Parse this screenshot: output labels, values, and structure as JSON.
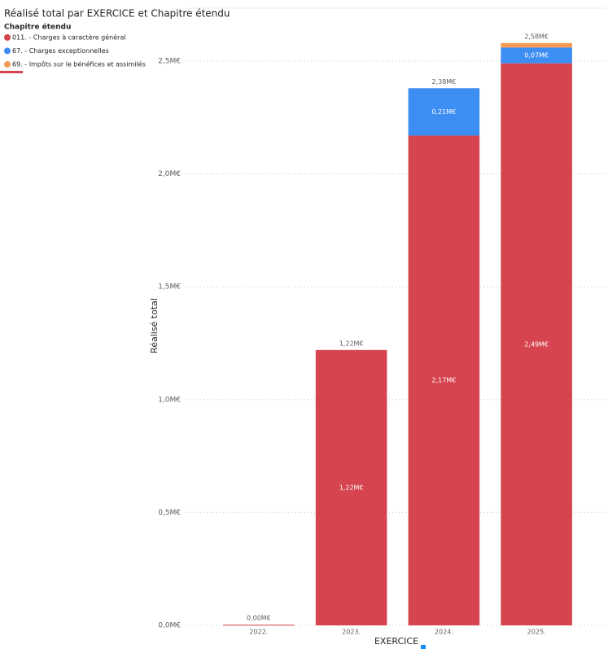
{
  "chart_data": {
    "type": "stacked_bar",
    "title": "Réalisé total par EXERCICE et Chapitre étendu",
    "legend_title": "Chapitre étendu",
    "x_label": "EXERCICE",
    "y_label": "Réalisé total",
    "categories": [
      "2022.",
      "2023.",
      "2024.",
      "2025."
    ],
    "series": [
      {
        "name": "011. -  Charges à caractère général",
        "color": "#d6444f",
        "values": [
          0.003,
          1.22,
          2.17,
          2.49
        ],
        "value_labels": [
          null,
          "1,22M€",
          "2,17M€",
          "2,49M€"
        ]
      },
      {
        "name": "67. -  Charges exceptionnelles",
        "color": "#3d8ef2",
        "values": [
          null,
          null,
          0.21,
          0.07
        ],
        "value_labels": [
          null,
          null,
          "0,21M€",
          "0,07M€"
        ]
      },
      {
        "name": "69. - Impôts sur le bénéfices et assimilés",
        "color": "#f59b57",
        "values": [
          null,
          null,
          null,
          0.02
        ]
      }
    ],
    "totals": {
      "values": [
        0.003,
        1.22,
        2.38,
        2.58
      ],
      "value_labels": [
        "0,00M€",
        "1,22M€",
        "2,38M€",
        "2,58M€"
      ]
    },
    "ylim": [
      0,
      2.5
    ],
    "yticks": [
      {
        "value": 0,
        "label": "0,0M€"
      },
      {
        "value": 0.5,
        "label": "0,5M€"
      },
      {
        "value": 1,
        "label": "1,0M€"
      },
      {
        "value": 1.5,
        "label": "1,5M€"
      },
      {
        "value": 2,
        "label": "2,0M€"
      },
      {
        "value": 2.5,
        "label": "2,5M€"
      }
    ],
    "grid": true
  }
}
